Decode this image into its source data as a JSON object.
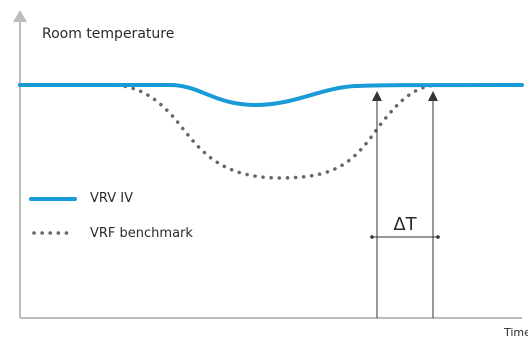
{
  "diagram": {
    "y_axis_label": "Room temperature",
    "x_axis_label": "Time",
    "delta_label": "ΔT",
    "legend": [
      {
        "label": "VRV IV",
        "style": "solid",
        "color": "#1a9ad6"
      },
      {
        "label": "VRF benchmark",
        "style": "dotted",
        "color": "#666666"
      }
    ],
    "colors": {
      "axis": "#bcbcbc",
      "vrv_line": "#1a9ad6",
      "vrf_dots": "#666666",
      "arrows": "#333333",
      "text": "#2b2b2b"
    }
  }
}
